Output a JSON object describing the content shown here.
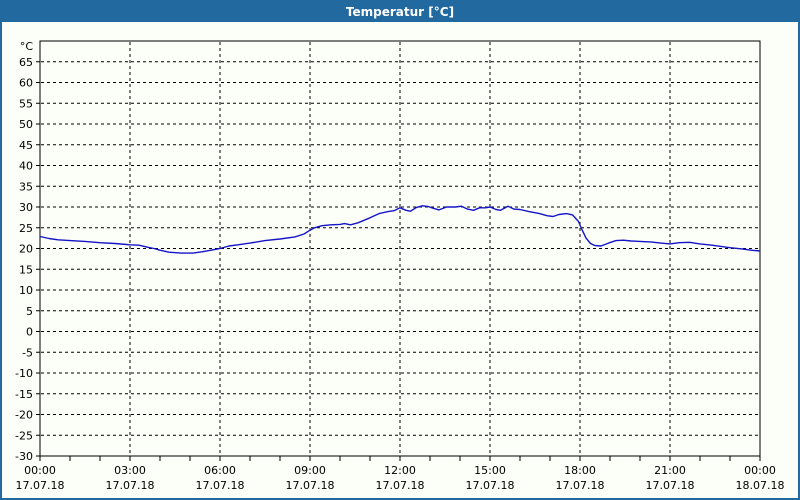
{
  "window": {
    "title": "Temperatur [°C]",
    "colors": {
      "titlebar": "#21699e",
      "titlebar_text": "#ffffff",
      "border": "#21699e",
      "background": "#fcfef8"
    }
  },
  "chart_data": {
    "type": "line",
    "title": "Temperatur [°C]",
    "ylabel": "°C",
    "xlabel": "",
    "legend": "none",
    "ylim": [
      -30,
      70
    ],
    "y_tick_step": 5,
    "y_tick_values": [
      65,
      60,
      55,
      50,
      45,
      40,
      35,
      30,
      25,
      20,
      15,
      10,
      5,
      0,
      -5,
      -10,
      -15,
      -20,
      -25,
      -30
    ],
    "grid": {
      "style": "dashed",
      "color": "#000000",
      "horizontal_every": 5,
      "vertical_every_hours": 3
    },
    "x_axis": {
      "unit": "hours",
      "range_hours": [
        0,
        24
      ],
      "minor_tick_every_hours": 1,
      "major_ticks": [
        {
          "hour": 0,
          "time": "00:00",
          "date": "17.07.18"
        },
        {
          "hour": 3,
          "time": "03:00",
          "date": "17.07.18"
        },
        {
          "hour": 6,
          "time": "06:00",
          "date": "17.07.18"
        },
        {
          "hour": 9,
          "time": "09:00",
          "date": "17.07.18"
        },
        {
          "hour": 12,
          "time": "12:00",
          "date": "17.07.18"
        },
        {
          "hour": 15,
          "time": "15:00",
          "date": "17.07.18"
        },
        {
          "hour": 18,
          "time": "18:00",
          "date": "17.07.18"
        },
        {
          "hour": 21,
          "time": "21:00",
          "date": "17.07.18"
        },
        {
          "hour": 24,
          "time": "00:00",
          "date": "18.07.18"
        }
      ]
    },
    "series": [
      {
        "name": "Temperatur",
        "color": "#1515c8",
        "points": [
          [
            0,
            22.9
          ],
          [
            0.3,
            22.4
          ],
          [
            0.6,
            22.1
          ],
          [
            1,
            21.9
          ],
          [
            1.5,
            21.7
          ],
          [
            2,
            21.4
          ],
          [
            2.5,
            21.2
          ],
          [
            3,
            20.9
          ],
          [
            3.3,
            20.8
          ],
          [
            3.6,
            20.3
          ],
          [
            3.8,
            20.0
          ],
          [
            4,
            19.6
          ],
          [
            4.3,
            19.1
          ],
          [
            4.7,
            18.9
          ],
          [
            5.1,
            18.9
          ],
          [
            5.4,
            19.2
          ],
          [
            5.7,
            19.6
          ],
          [
            6,
            20.0
          ],
          [
            6.3,
            20.6
          ],
          [
            6.6,
            20.9
          ],
          [
            7,
            21.3
          ],
          [
            7.5,
            21.9
          ],
          [
            8,
            22.3
          ],
          [
            8.5,
            22.8
          ],
          [
            8.8,
            23.5
          ],
          [
            9,
            24.4
          ],
          [
            9.15,
            25.0
          ],
          [
            9.4,
            25.5
          ],
          [
            9.7,
            25.7
          ],
          [
            10,
            25.8
          ],
          [
            10.15,
            26.0
          ],
          [
            10.35,
            25.7
          ],
          [
            10.6,
            26.2
          ],
          [
            11,
            27.4
          ],
          [
            11.3,
            28.4
          ],
          [
            11.6,
            28.9
          ],
          [
            11.8,
            29.1
          ],
          [
            12,
            29.8
          ],
          [
            12.2,
            29.2
          ],
          [
            12.35,
            29.0
          ],
          [
            12.55,
            29.9
          ],
          [
            12.75,
            30.3
          ],
          [
            12.95,
            30.1
          ],
          [
            13.1,
            29.7
          ],
          [
            13.3,
            29.3
          ],
          [
            13.55,
            30.0
          ],
          [
            13.85,
            30.0
          ],
          [
            14.05,
            30.2
          ],
          [
            14.25,
            29.5
          ],
          [
            14.45,
            29.2
          ],
          [
            14.65,
            29.8
          ],
          [
            14.85,
            29.8
          ],
          [
            15,
            30.0
          ],
          [
            15.2,
            29.4
          ],
          [
            15.35,
            29.2
          ],
          [
            15.6,
            30.2
          ],
          [
            15.8,
            29.5
          ],
          [
            16,
            29.4
          ],
          [
            16.3,
            28.9
          ],
          [
            16.65,
            28.4
          ],
          [
            16.9,
            27.9
          ],
          [
            17.1,
            27.7
          ],
          [
            17.3,
            28.2
          ],
          [
            17.55,
            28.4
          ],
          [
            17.75,
            28.1
          ],
          [
            17.95,
            26.5
          ],
          [
            18.05,
            24.8
          ],
          [
            18.2,
            22.5
          ],
          [
            18.35,
            21.2
          ],
          [
            18.5,
            20.7
          ],
          [
            18.7,
            20.6
          ],
          [
            18.95,
            21.3
          ],
          [
            19.2,
            21.9
          ],
          [
            19.45,
            22.0
          ],
          [
            19.7,
            21.8
          ],
          [
            20,
            21.7
          ],
          [
            20.35,
            21.6
          ],
          [
            20.7,
            21.3
          ],
          [
            21,
            21.1
          ],
          [
            21.3,
            21.4
          ],
          [
            21.65,
            21.5
          ],
          [
            22,
            21.1
          ],
          [
            22.4,
            20.8
          ],
          [
            22.7,
            20.5
          ],
          [
            23,
            20.2
          ],
          [
            23.4,
            19.9
          ],
          [
            23.7,
            19.6
          ],
          [
            24,
            19.4
          ]
        ]
      }
    ]
  }
}
